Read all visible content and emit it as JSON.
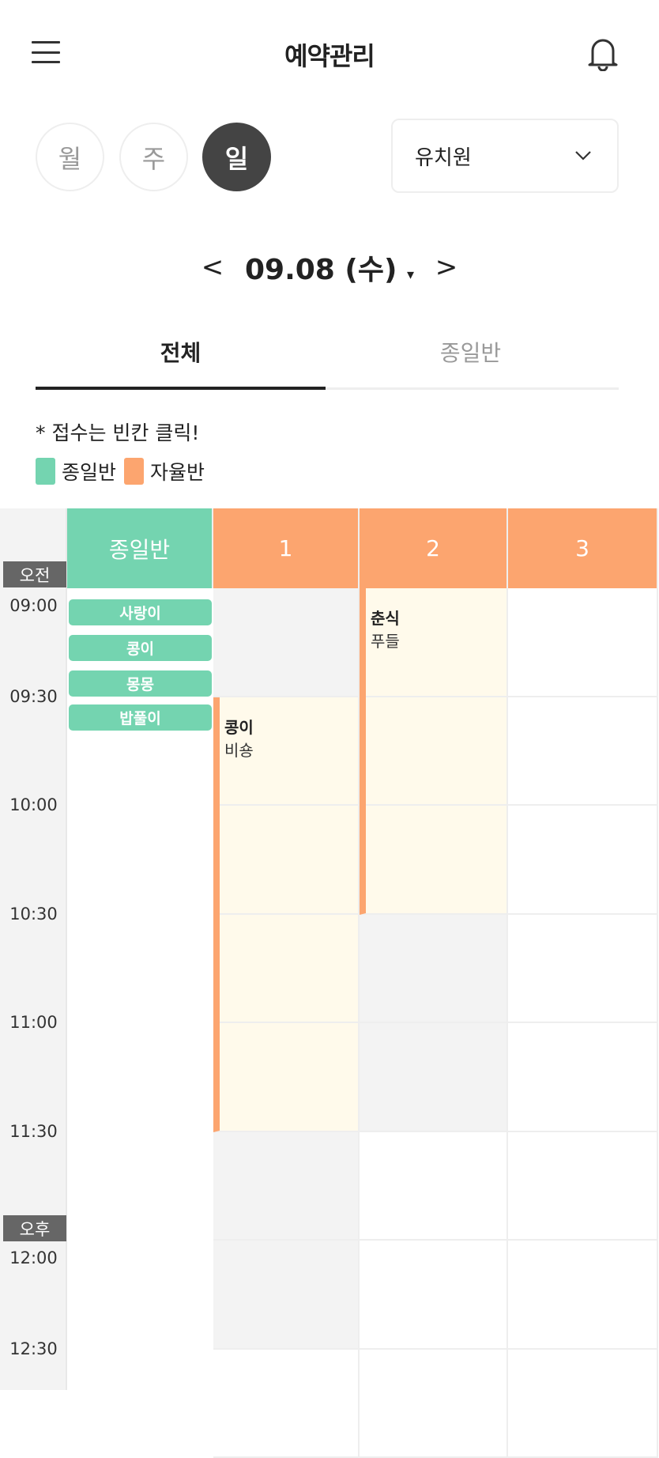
{
  "header": {
    "title": "예약관리",
    "menu_icon": "hamburger-icon",
    "bell_icon": "bell-icon"
  },
  "view_modes": [
    {
      "label": "월",
      "active": false
    },
    {
      "label": "주",
      "active": false
    },
    {
      "label": "일",
      "active": true
    }
  ],
  "facility_select": {
    "value": "유치원"
  },
  "date_nav": {
    "prev": "<",
    "date": "09.08 (수)",
    "caret": "▾",
    "next": ">"
  },
  "tabs": [
    {
      "label": "전체",
      "active": true
    },
    {
      "label": "종일반",
      "active": false
    }
  ],
  "note": "* 접수는 빈칸 클릭!",
  "legend": [
    {
      "label": "종일반",
      "color": "#74d4b0"
    },
    {
      "label": "자율반",
      "color": "#fca56f"
    }
  ],
  "schedule": {
    "columns": [
      {
        "label": "종일반",
        "color": "#74d4b0"
      },
      {
        "label": "1",
        "color": "#fca56f"
      },
      {
        "label": "2",
        "color": "#fca56f"
      },
      {
        "label": "3",
        "color": "#fca56f"
      }
    ],
    "am": "오전",
    "pm": "오후",
    "times": [
      "09:00",
      "09:30",
      "10:00",
      "10:30",
      "11:00",
      "11:30",
      "12:00",
      "12:30"
    ],
    "fullday_pets": [
      "사랑이",
      "콩이",
      "몽몽",
      "밥풀이"
    ],
    "events": [
      {
        "column": "1",
        "start": "09:30",
        "end": "11:30",
        "name": "콩이",
        "breed": "비숑"
      },
      {
        "column": "2",
        "start": "09:00",
        "end": "10:30",
        "name": "춘식",
        "breed": "푸들"
      }
    ],
    "unavailable": [
      {
        "column": "1",
        "start": "09:00",
        "end": "09:30"
      },
      {
        "column": "1",
        "start": "11:30",
        "end": "12:30"
      },
      {
        "column": "2",
        "start": "10:30",
        "end": "11:30"
      }
    ]
  }
}
